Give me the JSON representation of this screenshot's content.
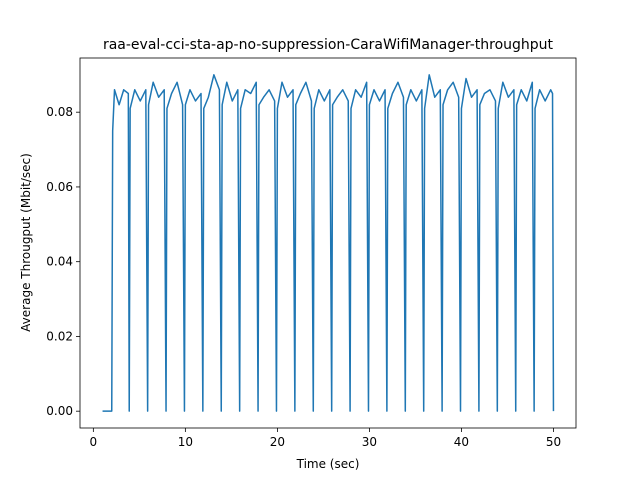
{
  "chart_data": {
    "type": "line",
    "title": "raa-eval-cci-sta-ap-no-suppression-CaraWifiManager-throughput",
    "xlabel": "Time (sec)",
    "ylabel": "Average Througput (Mbit/sec)",
    "color": "#1f77b4",
    "xlim": [
      -1.45,
      52.45
    ],
    "ylim": [
      -0.0045,
      0.0945
    ],
    "xticks": [
      0,
      10,
      20,
      30,
      40,
      50
    ],
    "yticks": [
      {
        "value": 0,
        "label": "0.00"
      },
      0.02,
      0.04,
      0.06,
      0.08
    ],
    "x": [
      1,
      2,
      2.1,
      2.3,
      2.8,
      3.3,
      3.8,
      3.9,
      4,
      4.5,
      5.1,
      5.7,
      5.9,
      6,
      6.5,
      7.1,
      7.7,
      7.9,
      8,
      8.5,
      9.1,
      9.7,
      9.9,
      10,
      10.5,
      11.1,
      11.7,
      11.9,
      12,
      12.5,
      13.1,
      13.7,
      13.9,
      14,
      14.5,
      15.1,
      15.7,
      15.9,
      16,
      16.5,
      17.1,
      17.7,
      17.9,
      18,
      18.5,
      19.1,
      19.7,
      19.9,
      20,
      20.5,
      21.1,
      21.7,
      21.9,
      22,
      22.5,
      23.1,
      23.7,
      23.9,
      24,
      24.5,
      25.1,
      25.7,
      25.9,
      26,
      26.5,
      27.1,
      27.7,
      27.9,
      28,
      28.5,
      29.1,
      29.7,
      29.9,
      30,
      30.5,
      31.1,
      31.7,
      31.9,
      32,
      32.5,
      33.1,
      33.7,
      33.9,
      34,
      34.5,
      35.1,
      35.7,
      35.9,
      36,
      36.5,
      37.1,
      37.7,
      37.9,
      38,
      38.5,
      39.1,
      39.7,
      39.9,
      40,
      40.5,
      41.1,
      41.7,
      41.9,
      42,
      42.5,
      43.1,
      43.7,
      43.9,
      44,
      44.5,
      45.1,
      45.7,
      45.9,
      46,
      46.5,
      47.1,
      47.7,
      47.9,
      48,
      48.5,
      49.1,
      49.7,
      49.9,
      50
    ],
    "values": [
      0,
      0,
      0.075,
      0.086,
      0.082,
      0.086,
      0.085,
      0,
      0.081,
      0.086,
      0.083,
      0.086,
      0,
      0.082,
      0.088,
      0.084,
      0.086,
      0,
      0.081,
      0.085,
      0.088,
      0.082,
      0,
      0.082,
      0.086,
      0.083,
      0.085,
      0,
      0.081,
      0.084,
      0.09,
      0.086,
      0,
      0.082,
      0.088,
      0.083,
      0.086,
      0,
      0.081,
      0.086,
      0.085,
      0.088,
      0,
      0.082,
      0.084,
      0.086,
      0.083,
      0,
      0.081,
      0.088,
      0.084,
      0.086,
      0,
      0.082,
      0.085,
      0.088,
      0.083,
      0,
      0.081,
      0.086,
      0.083,
      0.086,
      0,
      0.082,
      0.084,
      0.086,
      0.083,
      0,
      0.081,
      0.086,
      0.084,
      0.088,
      0,
      0.082,
      0.086,
      0.083,
      0.086,
      0,
      0.081,
      0.085,
      0.088,
      0.084,
      0,
      0.082,
      0.086,
      0.083,
      0.086,
      0,
      0.081,
      0.09,
      0.084,
      0.086,
      0,
      0.082,
      0.086,
      0.088,
      0.084,
      0,
      0.081,
      0.089,
      0.084,
      0.086,
      0,
      0.082,
      0.085,
      0.086,
      0.083,
      0,
      0.081,
      0.088,
      0.084,
      0.086,
      0,
      0.082,
      0.086,
      0.083,
      0.088,
      0,
      0.081,
      0.086,
      0.083,
      0.086,
      0.085,
      0
    ]
  }
}
